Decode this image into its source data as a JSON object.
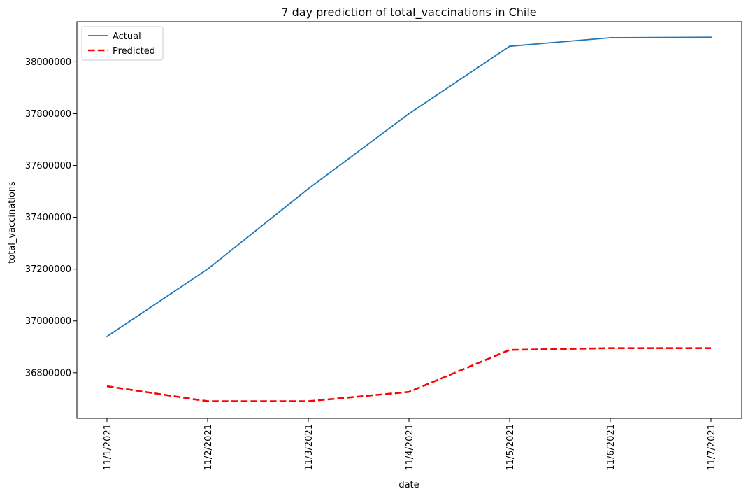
{
  "chart_data": {
    "type": "line",
    "title": "7 day prediction of total_vaccinations in Chile",
    "xlabel": "date",
    "ylabel": "total_vaccinations",
    "categories": [
      "11/1/2021",
      "11/2/2021",
      "11/3/2021",
      "11/4/2021",
      "11/5/2021",
      "11/6/2021",
      "11/7/2021"
    ],
    "y_ticks": [
      36800000,
      37000000,
      37200000,
      37400000,
      37600000,
      37800000,
      38000000
    ],
    "y_tick_labels": [
      "36800000",
      "37000000",
      "37200000",
      "37400000",
      "37600000",
      "37800000",
      "38000000"
    ],
    "ylim": [
      36624000,
      38155000
    ],
    "grid": false,
    "legend_position": "top-left",
    "series": [
      {
        "name": "Actual",
        "color": "#1f77b4",
        "style": "solid",
        "values": [
          36940000,
          37200000,
          37510000,
          37800000,
          38060000,
          38093000,
          38095000
        ]
      },
      {
        "name": "Predicted",
        "color": "#ff0000",
        "style": "dashed",
        "values": [
          36748000,
          36690000,
          36690000,
          36726000,
          36888000,
          36895000,
          36895000
        ]
      }
    ]
  }
}
